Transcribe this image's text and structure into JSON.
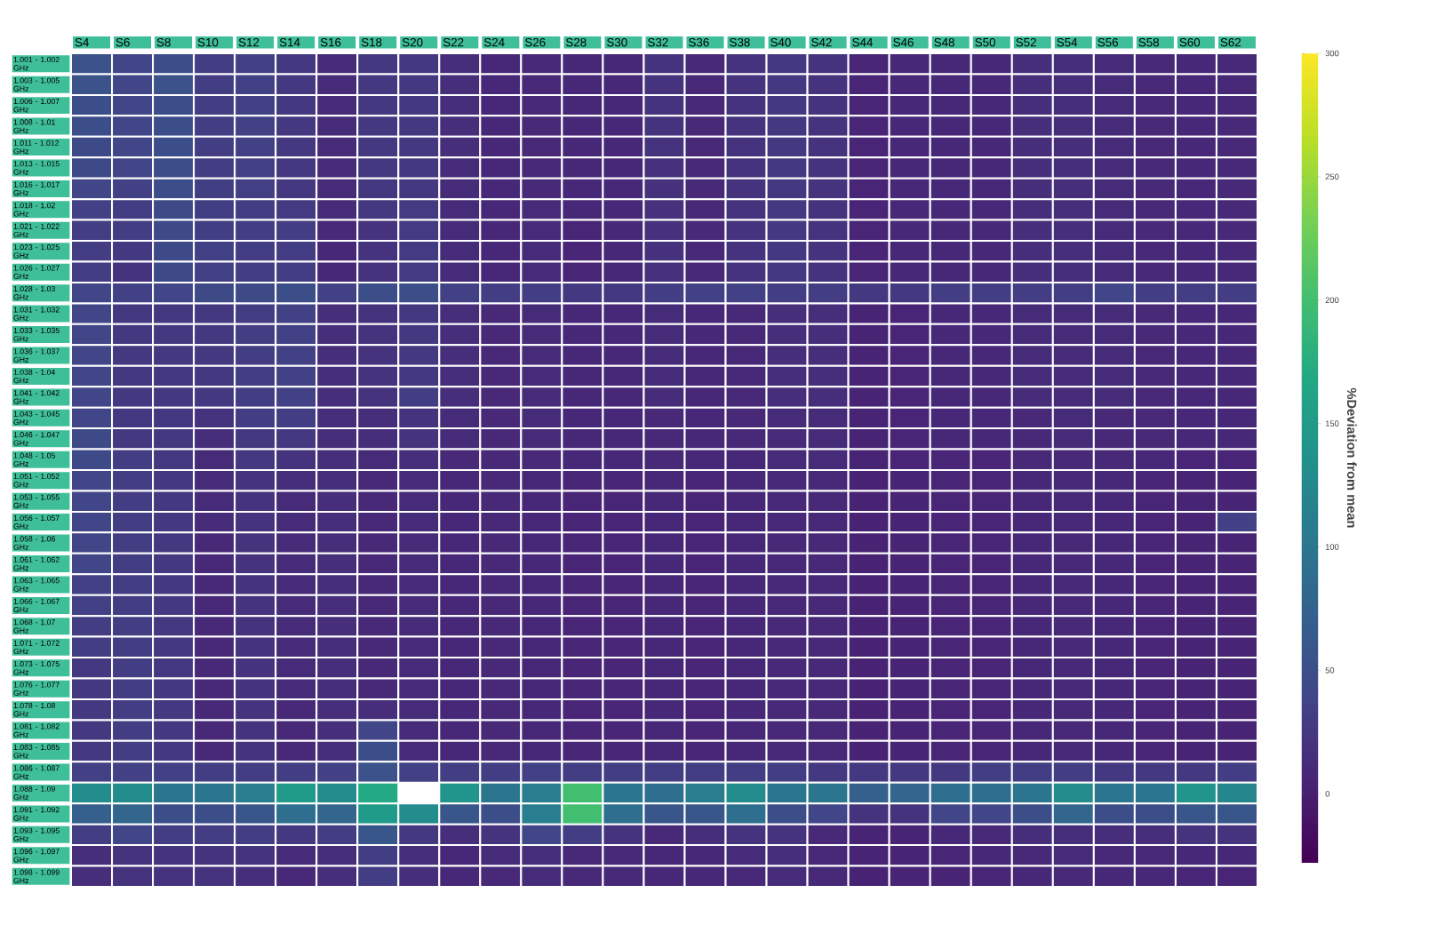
{
  "chart_data": {
    "type": "heatmap",
    "clabel": "%Deviation from mean",
    "categories": [
      "S4",
      "S6",
      "S8",
      "S10",
      "S12",
      "S14",
      "S16",
      "S18",
      "S20",
      "S22",
      "S24",
      "S26",
      "S28",
      "S30",
      "S32",
      "S36",
      "S38",
      "S40",
      "S42",
      "S44",
      "S46",
      "S48",
      "S50",
      "S52",
      "S54",
      "S56",
      "S58",
      "S60",
      "S62"
    ],
    "y_categories": [
      "1.001 - 1.002 GHz",
      "1.003 - 1.005 GHz",
      "1.006 - 1.007 GHz",
      "1.008 - 1.01 GHz",
      "1.011 - 1.012 GHz",
      "1.013 - 1.015 GHz",
      "1.016 - 1.017 GHz",
      "1.018 - 1.02 GHz",
      "1.021 - 1.022 GHz",
      "1.023 - 1.025 GHz",
      "1.026 - 1.027 GHz",
      "1.028 - 1.03 GHz",
      "1.031 - 1.032 GHz",
      "1.033 - 1.035 GHz",
      "1.036 - 1.037 GHz",
      "1.038 - 1.04 GHz",
      "1.041 - 1.042 GHz",
      "1.043 - 1.045 GHz",
      "1.046 - 1.047 GHz",
      "1.048 - 1.05 GHz",
      "1.051 - 1.052 GHz",
      "1.053 - 1.055 GHz",
      "1.056 - 1.057 GHz",
      "1.058 - 1.06 GHz",
      "1.061 - 1.062 GHz",
      "1.063 - 1.065 GHz",
      "1.066 - 1.067 GHz",
      "1.068 - 1.07 GHz",
      "1.071 - 1.072 GHz",
      "1.073 - 1.075 GHz",
      "1.076 - 1.077 GHz",
      "1.078 - 1.08 GHz",
      "1.081 - 1.082 GHz",
      "1.083 - 1.085 GHz",
      "1.086 - 1.087 GHz",
      "1.088 - 1.09 GHz",
      "1.091 - 1.092 GHz",
      "1.093 - 1.095 GHz",
      "1.096 - 1.097 GHz",
      "1.098 - 1.099 GHz"
    ],
    "cells": [
      [
        55,
        40,
        50,
        30,
        35,
        25,
        12,
        25,
        25,
        15,
        8,
        10,
        8,
        8,
        20,
        10,
        20,
        25,
        20,
        6,
        8,
        8,
        8,
        15,
        15,
        12,
        10,
        8,
        10
      ],
      [
        55,
        40,
        55,
        30,
        35,
        25,
        12,
        25,
        25,
        15,
        8,
        10,
        8,
        8,
        20,
        10,
        20,
        25,
        20,
        6,
        8,
        8,
        8,
        15,
        15,
        12,
        10,
        8,
        10
      ],
      [
        50,
        40,
        50,
        30,
        35,
        25,
        12,
        25,
        25,
        15,
        8,
        10,
        8,
        8,
        20,
        10,
        20,
        25,
        20,
        6,
        8,
        8,
        8,
        15,
        15,
        12,
        10,
        8,
        10
      ],
      [
        50,
        40,
        50,
        30,
        35,
        25,
        12,
        25,
        25,
        15,
        8,
        10,
        8,
        8,
        20,
        10,
        20,
        25,
        20,
        6,
        8,
        8,
        8,
        15,
        15,
        12,
        10,
        8,
        10
      ],
      [
        45,
        40,
        50,
        30,
        35,
        25,
        12,
        25,
        25,
        15,
        8,
        10,
        8,
        8,
        20,
        10,
        20,
        25,
        20,
        6,
        8,
        8,
        8,
        15,
        15,
        12,
        10,
        8,
        10
      ],
      [
        45,
        38,
        48,
        30,
        33,
        25,
        12,
        25,
        25,
        12,
        8,
        10,
        8,
        8,
        18,
        10,
        20,
        25,
        20,
        6,
        8,
        8,
        8,
        15,
        15,
        12,
        10,
        8,
        10
      ],
      [
        40,
        35,
        48,
        32,
        33,
        25,
        12,
        25,
        25,
        12,
        8,
        10,
        8,
        8,
        18,
        10,
        20,
        25,
        20,
        6,
        8,
        8,
        8,
        15,
        15,
        12,
        10,
        8,
        10
      ],
      [
        35,
        30,
        45,
        32,
        30,
        28,
        12,
        25,
        28,
        12,
        8,
        12,
        8,
        8,
        18,
        10,
        20,
        25,
        20,
        6,
        8,
        8,
        8,
        15,
        15,
        12,
        10,
        8,
        10
      ],
      [
        30,
        30,
        45,
        32,
        30,
        30,
        10,
        20,
        28,
        12,
        8,
        12,
        6,
        8,
        18,
        10,
        20,
        25,
        20,
        6,
        8,
        8,
        8,
        15,
        15,
        12,
        10,
        8,
        10
      ],
      [
        30,
        25,
        45,
        35,
        30,
        30,
        8,
        20,
        28,
        12,
        8,
        12,
        6,
        8,
        18,
        10,
        20,
        25,
        20,
        6,
        8,
        8,
        8,
        15,
        15,
        12,
        10,
        8,
        10
      ],
      [
        30,
        20,
        45,
        35,
        30,
        30,
        8,
        20,
        28,
        12,
        8,
        12,
        6,
        8,
        18,
        10,
        20,
        25,
        20,
        6,
        8,
        8,
        8,
        15,
        15,
        12,
        10,
        8,
        10
      ],
      [
        40,
        35,
        40,
        45,
        45,
        50,
        35,
        50,
        50,
        35,
        30,
        30,
        25,
        25,
        30,
        35,
        35,
        30,
        30,
        25,
        25,
        30,
        30,
        30,
        30,
        40,
        30,
        30,
        30
      ],
      [
        40,
        25,
        25,
        25,
        30,
        35,
        15,
        20,
        25,
        15,
        10,
        12,
        8,
        8,
        12,
        8,
        10,
        15,
        15,
        5,
        6,
        8,
        8,
        12,
        12,
        12,
        10,
        8,
        8
      ],
      [
        40,
        25,
        25,
        25,
        30,
        35,
        15,
        20,
        25,
        15,
        10,
        12,
        8,
        8,
        12,
        8,
        10,
        15,
        15,
        5,
        6,
        8,
        8,
        12,
        12,
        12,
        10,
        8,
        8
      ],
      [
        40,
        25,
        25,
        25,
        30,
        35,
        15,
        20,
        25,
        15,
        10,
        12,
        8,
        8,
        12,
        8,
        10,
        15,
        15,
        5,
        6,
        8,
        8,
        12,
        12,
        12,
        10,
        8,
        8
      ],
      [
        40,
        25,
        25,
        25,
        30,
        35,
        15,
        20,
        25,
        15,
        10,
        12,
        8,
        8,
        12,
        8,
        10,
        15,
        15,
        5,
        6,
        8,
        8,
        12,
        12,
        12,
        10,
        8,
        8
      ],
      [
        40,
        25,
        25,
        25,
        30,
        35,
        15,
        20,
        30,
        15,
        10,
        12,
        8,
        8,
        12,
        8,
        10,
        15,
        15,
        5,
        6,
        8,
        8,
        12,
        12,
        12,
        10,
        8,
        8
      ],
      [
        40,
        25,
        25,
        20,
        30,
        30,
        15,
        15,
        20,
        12,
        10,
        12,
        8,
        8,
        10,
        8,
        10,
        12,
        12,
        5,
        6,
        8,
        8,
        10,
        12,
        10,
        10,
        8,
        8
      ],
      [
        45,
        25,
        25,
        15,
        25,
        25,
        15,
        15,
        20,
        12,
        10,
        12,
        8,
        8,
        10,
        8,
        10,
        12,
        12,
        5,
        6,
        8,
        8,
        10,
        12,
        10,
        10,
        8,
        8
      ],
      [
        45,
        30,
        25,
        12,
        25,
        20,
        15,
        12,
        15,
        10,
        10,
        10,
        8,
        8,
        10,
        8,
        8,
        12,
        12,
        5,
        6,
        6,
        6,
        10,
        10,
        10,
        8,
        6,
        6
      ],
      [
        40,
        30,
        25,
        12,
        20,
        15,
        15,
        10,
        12,
        8,
        10,
        8,
        6,
        6,
        8,
        6,
        8,
        10,
        10,
        4,
        5,
        6,
        6,
        8,
        10,
        8,
        6,
        5,
        5
      ],
      [
        40,
        30,
        25,
        12,
        20,
        12,
        15,
        10,
        12,
        8,
        10,
        8,
        6,
        6,
        8,
        6,
        8,
        10,
        10,
        4,
        5,
        6,
        6,
        8,
        10,
        8,
        6,
        5,
        5
      ],
      [
        40,
        30,
        25,
        12,
        20,
        12,
        15,
        10,
        12,
        8,
        10,
        8,
        6,
        6,
        8,
        6,
        8,
        10,
        10,
        4,
        5,
        6,
        6,
        8,
        10,
        8,
        6,
        5,
        35
      ],
      [
        40,
        30,
        25,
        10,
        20,
        12,
        15,
        10,
        12,
        8,
        10,
        8,
        6,
        6,
        8,
        6,
        8,
        10,
        10,
        4,
        5,
        6,
        6,
        8,
        10,
        8,
        6,
        5,
        5
      ],
      [
        40,
        30,
        25,
        10,
        20,
        12,
        15,
        10,
        12,
        8,
        10,
        8,
        6,
        6,
        8,
        6,
        8,
        10,
        10,
        4,
        5,
        6,
        6,
        8,
        10,
        8,
        6,
        5,
        5
      ],
      [
        35,
        30,
        25,
        10,
        20,
        12,
        15,
        10,
        12,
        8,
        10,
        8,
        6,
        6,
        8,
        6,
        8,
        10,
        10,
        4,
        5,
        6,
        6,
        8,
        10,
        8,
        6,
        5,
        5
      ],
      [
        35,
        30,
        25,
        10,
        20,
        12,
        15,
        10,
        12,
        8,
        10,
        8,
        6,
        6,
        8,
        6,
        8,
        10,
        10,
        4,
        5,
        6,
        6,
        8,
        10,
        8,
        6,
        5,
        5
      ],
      [
        30,
        30,
        25,
        10,
        20,
        12,
        15,
        10,
        12,
        8,
        10,
        8,
        6,
        6,
        8,
        6,
        8,
        10,
        10,
        4,
        5,
        6,
        6,
        8,
        10,
        8,
        6,
        5,
        5
      ],
      [
        30,
        30,
        25,
        10,
        20,
        12,
        15,
        10,
        12,
        8,
        10,
        8,
        6,
        6,
        8,
        6,
        8,
        10,
        10,
        4,
        5,
        6,
        6,
        8,
        10,
        8,
        6,
        5,
        5
      ],
      [
        25,
        30,
        25,
        10,
        20,
        12,
        15,
        10,
        12,
        8,
        10,
        8,
        6,
        6,
        8,
        6,
        8,
        10,
        10,
        4,
        5,
        6,
        6,
        8,
        10,
        8,
        6,
        5,
        5
      ],
      [
        25,
        30,
        25,
        10,
        20,
        12,
        15,
        10,
        12,
        8,
        10,
        8,
        6,
        6,
        8,
        6,
        8,
        10,
        10,
        4,
        5,
        6,
        6,
        8,
        10,
        8,
        6,
        5,
        5
      ],
      [
        25,
        30,
        25,
        10,
        20,
        10,
        15,
        15,
        12,
        8,
        10,
        8,
        6,
        6,
        8,
        6,
        8,
        10,
        10,
        4,
        5,
        6,
        6,
        8,
        10,
        8,
        6,
        5,
        5
      ],
      [
        25,
        30,
        25,
        10,
        20,
        10,
        15,
        40,
        12,
        8,
        10,
        8,
        6,
        6,
        8,
        6,
        8,
        10,
        10,
        4,
        5,
        6,
        6,
        8,
        10,
        8,
        6,
        5,
        5
      ],
      [
        25,
        30,
        25,
        10,
        20,
        10,
        15,
        50,
        12,
        8,
        10,
        8,
        6,
        6,
        8,
        6,
        8,
        10,
        10,
        4,
        5,
        6,
        6,
        8,
        10,
        8,
        6,
        5,
        5
      ],
      [
        35,
        35,
        35,
        30,
        30,
        30,
        35,
        55,
        35,
        30,
        30,
        35,
        30,
        30,
        30,
        30,
        30,
        30,
        25,
        25,
        25,
        25,
        30,
        30,
        30,
        25,
        25,
        25,
        30
      ],
      [
        130,
        130,
        100,
        100,
        110,
        150,
        130,
        170,
        null,
        140,
        100,
        110,
        200,
        100,
        90,
        110,
        130,
        100,
        100,
        70,
        80,
        90,
        90,
        100,
        130,
        100,
        100,
        140,
        120
      ],
      [
        70,
        80,
        50,
        50,
        60,
        90,
        80,
        150,
        130,
        60,
        50,
        110,
        200,
        90,
        60,
        60,
        90,
        50,
        40,
        20,
        20,
        40,
        40,
        50,
        80,
        50,
        50,
        60,
        60
      ],
      [
        30,
        40,
        30,
        30,
        30,
        25,
        30,
        60,
        25,
        15,
        20,
        40,
        30,
        20,
        10,
        15,
        20,
        20,
        10,
        5,
        5,
        8,
        10,
        15,
        15,
        15,
        15,
        20,
        20
      ],
      [
        15,
        20,
        20,
        20,
        20,
        12,
        15,
        30,
        15,
        8,
        12,
        15,
        10,
        10,
        8,
        8,
        12,
        15,
        10,
        5,
        5,
        6,
        8,
        10,
        12,
        10,
        10,
        8,
        8
      ],
      [
        15,
        20,
        20,
        20,
        15,
        10,
        15,
        30,
        15,
        8,
        10,
        12,
        10,
        10,
        8,
        8,
        10,
        12,
        10,
        4,
        5,
        5,
        6,
        8,
        10,
        8,
        8,
        6,
        6
      ]
    ],
    "clim": [
      -28,
      300
    ],
    "cticks": [
      0,
      50,
      100,
      150,
      200,
      250,
      300
    ]
  }
}
